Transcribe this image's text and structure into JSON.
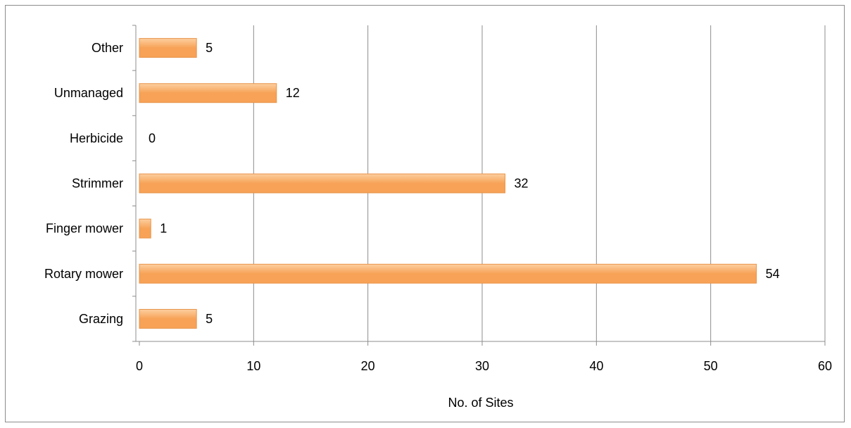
{
  "chart_data": {
    "type": "bar",
    "orientation": "horizontal",
    "title": "",
    "xlabel": "No. of Sites",
    "ylabel": "",
    "categories": [
      "Grazing",
      "Rotary mower",
      "Finger mower",
      "Strimmer",
      "Herbicide",
      "Unmanaged",
      "Other"
    ],
    "values": [
      5,
      54,
      1,
      32,
      0,
      12,
      5
    ],
    "xlim": [
      0,
      60
    ],
    "xticks": [
      0,
      10,
      20,
      30,
      40,
      50,
      60
    ],
    "grid": true,
    "legend": "none",
    "data_labels": true,
    "colors": {
      "bar_fill_light": "#fdcfa0",
      "bar_fill_dark": "#f7a257",
      "bar_stroke": "#e8944a",
      "gridline": "#8c8c8c",
      "axis": "#8c8c8c",
      "frame": "#8c8c8c"
    }
  }
}
